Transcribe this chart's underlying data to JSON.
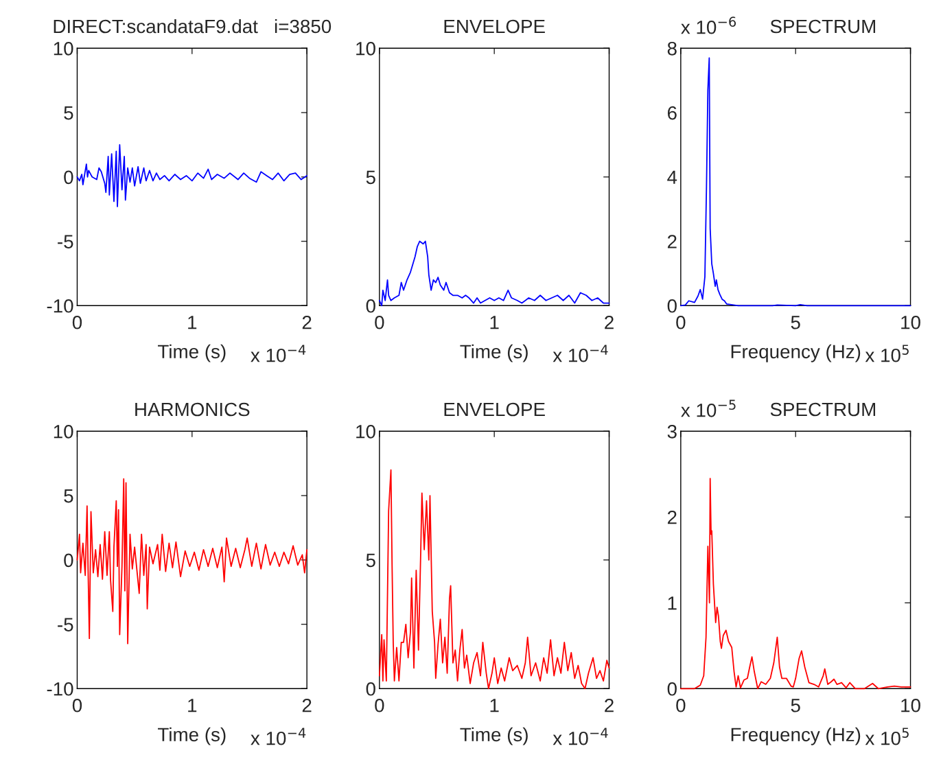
{
  "chart_data": [
    {
      "type": "line",
      "title": "DIRECT:scandataF9.dat   i=3850",
      "xlabel": "Time (s)",
      "annotations": [
        "x 10$^{−4}$"
      ],
      "xlim": [
        0,
        2
      ],
      "xticks": [
        0,
        1,
        2
      ],
      "ylim": [
        -10,
        10
      ],
      "yticks": [
        -10,
        -5,
        0,
        5,
        10
      ],
      "grid": false,
      "series": [
        {
          "color": "#0000ff",
          "x": [
            0,
            0.02,
            0.04,
            0.05,
            0.08,
            0.09,
            0.1,
            0.13,
            0.17,
            0.19,
            0.21,
            0.24,
            0.25,
            0.27,
            0.28,
            0.3,
            0.32,
            0.34,
            0.35,
            0.37,
            0.39,
            0.41,
            0.42,
            0.44,
            0.46,
            0.48,
            0.5,
            0.53,
            0.55,
            0.58,
            0.6,
            0.63,
            0.66,
            0.69,
            0.72,
            0.76,
            0.8,
            0.85,
            0.9,
            0.95,
            1.0,
            1.05,
            1.1,
            1.14,
            1.17,
            1.22,
            1.28,
            1.33,
            1.4,
            1.45,
            1.5,
            1.56,
            1.6,
            1.65,
            1.7,
            1.75,
            1.8,
            1.85,
            1.9,
            1.95,
            2.0
          ],
          "values": [
            0,
            -0.3,
            0.2,
            -0.6,
            1.0,
            0,
            0.5,
            0,
            -0.2,
            0.7,
            0.4,
            -0.5,
            -1.2,
            1.6,
            -1.4,
            1.8,
            -1.9,
            2.0,
            -2.3,
            2.5,
            -1.0,
            1.6,
            -1.8,
            0.7,
            -0.4,
            0.7,
            -0.7,
            0.8,
            -0.5,
            0.7,
            -0.3,
            0.5,
            -0.3,
            0.3,
            -0.2,
            0.1,
            -0.3,
            0.2,
            -0.2,
            0.1,
            -0.3,
            0.3,
            -0.1,
            0.6,
            -0.2,
            0.2,
            -0.1,
            0.3,
            -0.2,
            0.3,
            -0.1,
            -0.4,
            0.4,
            0.1,
            -0.2,
            0.3,
            -0.3,
            0.2,
            0.3,
            -0.2,
            0.1
          ]
        }
      ]
    },
    {
      "type": "line",
      "title": "ENVELOPE",
      "xlabel": "Time (s)",
      "annotations": [
        "x 10$^{−4}$"
      ],
      "xlim": [
        0,
        2
      ],
      "xticks": [
        0,
        1,
        2
      ],
      "ylim": [
        0,
        10
      ],
      "yticks": [
        0,
        5,
        10
      ],
      "grid": false,
      "series": [
        {
          "color": "#0000ff",
          "x": [
            0,
            0.02,
            0.03,
            0.05,
            0.07,
            0.08,
            0.1,
            0.13,
            0.17,
            0.19,
            0.21,
            0.24,
            0.27,
            0.29,
            0.31,
            0.33,
            0.35,
            0.38,
            0.4,
            0.42,
            0.43,
            0.45,
            0.47,
            0.49,
            0.51,
            0.53,
            0.56,
            0.58,
            0.61,
            0.64,
            0.68,
            0.72,
            0.75,
            0.78,
            0.82,
            0.85,
            0.88,
            0.92,
            0.96,
            1.0,
            1.04,
            1.08,
            1.12,
            1.15,
            1.2,
            1.24,
            1.3,
            1.35,
            1.4,
            1.45,
            1.5,
            1.55,
            1.6,
            1.65,
            1.7,
            1.75,
            1.8,
            1.85,
            1.9,
            1.95,
            2.0
          ],
          "values": [
            0.2,
            0,
            0.6,
            0.2,
            1.0,
            0.4,
            0.2,
            0.3,
            0.4,
            0.9,
            0.6,
            1.0,
            1.3,
            1.6,
            1.9,
            2.3,
            2.5,
            2.4,
            2.5,
            1.9,
            1.2,
            0.6,
            1.0,
            0.9,
            1.1,
            0.8,
            0.6,
            0.9,
            0.5,
            0.4,
            0.4,
            0.3,
            0.4,
            0.3,
            0.1,
            0.3,
            0.1,
            0.2,
            0.3,
            0.2,
            0.3,
            0.2,
            0.6,
            0.3,
            0.2,
            0.1,
            0.3,
            0.2,
            0.4,
            0.2,
            0.3,
            0.4,
            0.2,
            0.4,
            0.1,
            0.5,
            0.4,
            0.2,
            0.3,
            0.1,
            0.1
          ]
        }
      ]
    },
    {
      "type": "line",
      "title": "SPECTRUM",
      "xlabel": "Frequency (Hz)",
      "annotations": [
        "x 10$^{5}$",
        "x 10$^{−6}$"
      ],
      "xlim": [
        0,
        10
      ],
      "xticks": [
        0,
        5,
        10
      ],
      "ylim": [
        0,
        8
      ],
      "yticks": [
        0,
        2,
        4,
        6,
        8
      ],
      "grid": false,
      "series": [
        {
          "color": "#0000ff",
          "x": [
            0,
            0.2,
            0.35,
            0.6,
            0.75,
            0.85,
            0.95,
            1.05,
            1.12,
            1.18,
            1.24,
            1.28,
            1.35,
            1.42,
            1.5,
            1.55,
            1.62,
            1.7,
            1.8,
            1.9,
            2.0,
            2.2,
            2.5,
            3,
            4,
            4.2,
            5,
            5.2,
            5.5,
            6,
            7,
            8,
            9,
            10
          ],
          "values": [
            0,
            0.02,
            0.15,
            0.1,
            0.3,
            0.5,
            0.2,
            0.9,
            3.7,
            6.7,
            7.7,
            2.4,
            1.3,
            1.0,
            0.6,
            0.8,
            0.5,
            0.35,
            0.2,
            0.15,
            0.05,
            0.03,
            0,
            0,
            0,
            0.02,
            0,
            0.03,
            0,
            0,
            0,
            0,
            0,
            0
          ]
        }
      ]
    },
    {
      "type": "line",
      "title": "HARMONICS",
      "xlabel": "Time (s)",
      "annotations": [
        "x 10$^{−4}$"
      ],
      "xlim": [
        0,
        2
      ],
      "xticks": [
        0,
        1,
        2
      ],
      "ylim": [
        -10,
        10
      ],
      "yticks": [
        -10,
        -5,
        0,
        5,
        10
      ],
      "grid": false,
      "series": [
        {
          "color": "#ff0000",
          "x": [
            0,
            0.02,
            0.03,
            0.05,
            0.07,
            0.086,
            0.095,
            0.106,
            0.12,
            0.14,
            0.16,
            0.18,
            0.2,
            0.22,
            0.24,
            0.26,
            0.28,
            0.29,
            0.31,
            0.32,
            0.34,
            0.35,
            0.36,
            0.37,
            0.39,
            0.405,
            0.415,
            0.425,
            0.44,
            0.46,
            0.48,
            0.5,
            0.52,
            0.54,
            0.56,
            0.58,
            0.6,
            0.61,
            0.63,
            0.66,
            0.7,
            0.72,
            0.74,
            0.77,
            0.8,
            0.83,
            0.86,
            0.9,
            0.94,
            0.98,
            1.02,
            1.06,
            1.1,
            1.14,
            1.18,
            1.22,
            1.26,
            1.28,
            1.3,
            1.34,
            1.38,
            1.42,
            1.46,
            1.48,
            1.52,
            1.56,
            1.6,
            1.64,
            1.68,
            1.72,
            1.76,
            1.8,
            1.84,
            1.88,
            1.92,
            1.96,
            1.98,
            2.0
          ],
          "values": [
            0,
            2.0,
            -1.0,
            1.3,
            -1.2,
            4.2,
            -0.8,
            -6.1,
            3.75,
            -1.0,
            0.8,
            -1.3,
            1.2,
            -1.5,
            2.2,
            -1.2,
            2.2,
            -1.5,
            -4.0,
            1.0,
            4.6,
            -0.5,
            3.9,
            -5.8,
            -0.5,
            6.3,
            -2.4,
            6.0,
            -6.5,
            2.0,
            -0.7,
            1.0,
            -0.8,
            -2.6,
            2.0,
            -1.2,
            1.2,
            -3.8,
            1.0,
            -0.3,
            1.2,
            -0.8,
            2.0,
            -0.9,
            1.3,
            -0.6,
            1.4,
            -1.3,
            0.7,
            -0.5,
            0.6,
            -0.8,
            0.8,
            -0.5,
            0.9,
            -0.6,
            1.0,
            -1.7,
            1.7,
            -0.5,
            0.9,
            -0.6,
            0.8,
            1.7,
            -0.5,
            1.3,
            -0.7,
            1.2,
            -0.4,
            0.6,
            -0.5,
            0.6,
            -0.3,
            1.1,
            -0.4,
            0.4,
            -1.0,
            0.8
          ]
        }
      ]
    },
    {
      "type": "line",
      "title": "ENVELOPE",
      "xlabel": "Time (s)",
      "annotations": [
        "x 10$^{−4}$"
      ],
      "xlim": [
        0,
        2
      ],
      "xticks": [
        0,
        1,
        2
      ],
      "ylim": [
        0,
        10
      ],
      "yticks": [
        0,
        5,
        10
      ],
      "grid": false,
      "series": [
        {
          "color": "#ff0000",
          "x": [
            0,
            0.02,
            0.03,
            0.04,
            0.06,
            0.08,
            0.1,
            0.11,
            0.12,
            0.13,
            0.15,
            0.17,
            0.19,
            0.21,
            0.23,
            0.25,
            0.27,
            0.28,
            0.3,
            0.32,
            0.34,
            0.36,
            0.37,
            0.39,
            0.41,
            0.43,
            0.44,
            0.46,
            0.48,
            0.49,
            0.51,
            0.53,
            0.55,
            0.57,
            0.59,
            0.61,
            0.62,
            0.64,
            0.66,
            0.68,
            0.7,
            0.72,
            0.74,
            0.76,
            0.79,
            0.82,
            0.85,
            0.88,
            0.9,
            0.93,
            0.95,
            0.98,
            1.0,
            1.03,
            1.06,
            1.09,
            1.13,
            1.16,
            1.2,
            1.24,
            1.27,
            1.29,
            1.32,
            1.36,
            1.4,
            1.43,
            1.46,
            1.49,
            1.52,
            1.55,
            1.58,
            1.61,
            1.64,
            1.67,
            1.7,
            1.73,
            1.76,
            1.79,
            1.82,
            1.86,
            1.89,
            1.92,
            1.95,
            1.98,
            2.0
          ],
          "values": [
            0.5,
            2.1,
            0.3,
            1.9,
            0.3,
            6.9,
            8.5,
            4.8,
            1.8,
            0.3,
            1.6,
            0.3,
            1.8,
            1.8,
            2.5,
            1.2,
            2.2,
            4.3,
            0.8,
            4.6,
            1.5,
            5.4,
            7.6,
            5.4,
            7.3,
            5.0,
            7.5,
            3.0,
            1.8,
            0.4,
            1.7,
            2.7,
            1.0,
            2.0,
            0.6,
            3.5,
            4.0,
            1.0,
            1.5,
            0.3,
            1.5,
            2.3,
            0.8,
            1.3,
            0.2,
            1.0,
            1.4,
            0.5,
            1.8,
            0.6,
            0,
            0.6,
            1.2,
            0.2,
            0.8,
            0.3,
            1.2,
            0.7,
            0.9,
            0.4,
            1.0,
            2.0,
            0.5,
            1.0,
            0.3,
            1.2,
            0.6,
            1.9,
            0.5,
            1.2,
            0.6,
            1.8,
            0.7,
            1.4,
            0.4,
            0.9,
            0.2,
            0,
            0.6,
            1.2,
            0.4,
            0.7,
            0.3,
            1.1,
            0.8
          ]
        }
      ]
    },
    {
      "type": "line",
      "title": "SPECTRUM",
      "xlabel": "Frequency (Hz)",
      "annotations": [
        "x 10$^{5}$",
        "x 10$^{−5}$"
      ],
      "xlim": [
        0,
        10
      ],
      "xticks": [
        0,
        5,
        10
      ],
      "ylim": [
        0,
        3
      ],
      "yticks": [
        0,
        1,
        2,
        3
      ],
      "grid": false,
      "series": [
        {
          "color": "#ff0000",
          "x": [
            0,
            0.6,
            0.85,
            1.0,
            1.1,
            1.18,
            1.25,
            1.28,
            1.32,
            1.35,
            1.42,
            1.48,
            1.52,
            1.58,
            1.64,
            1.72,
            1.77,
            1.85,
            1.97,
            2.08,
            2.22,
            2.32,
            2.41,
            2.5,
            2.6,
            2.75,
            2.9,
            3.0,
            3.1,
            3.2,
            3.35,
            3.5,
            3.7,
            3.9,
            4.05,
            4.2,
            4.3,
            4.4,
            4.6,
            4.8,
            4.9,
            5.0,
            5.15,
            5.26,
            5.4,
            5.58,
            5.8,
            6.0,
            6.2,
            6.27,
            6.4,
            6.55,
            6.67,
            6.8,
            7.0,
            7.2,
            7.36,
            7.6,
            8.0,
            8.35,
            8.6,
            9.0,
            9.3,
            9.6,
            10
          ],
          "values": [
            0,
            0,
            0.04,
            0.15,
            0.6,
            1.66,
            1.0,
            2.45,
            1.8,
            1.84,
            1.22,
            0.95,
            0.77,
            0.95,
            0.85,
            0.55,
            0.47,
            0.62,
            0.68,
            0.55,
            0.48,
            0.2,
            0.02,
            0.15,
            0.01,
            0.1,
            0.12,
            0.25,
            0.37,
            0.2,
            0,
            0.08,
            0.05,
            0.12,
            0.3,
            0.6,
            0.25,
            0.12,
            0.12,
            0.03,
            0.02,
            0.12,
            0.35,
            0.44,
            0.25,
            0.07,
            0.05,
            0.02,
            0.15,
            0.23,
            0.05,
            0.08,
            0.11,
            0.05,
            0.07,
            0.01,
            0.07,
            0,
            0,
            0.06,
            0,
            0.02,
            0.03,
            0.02,
            0.02
          ]
        }
      ]
    }
  ]
}
